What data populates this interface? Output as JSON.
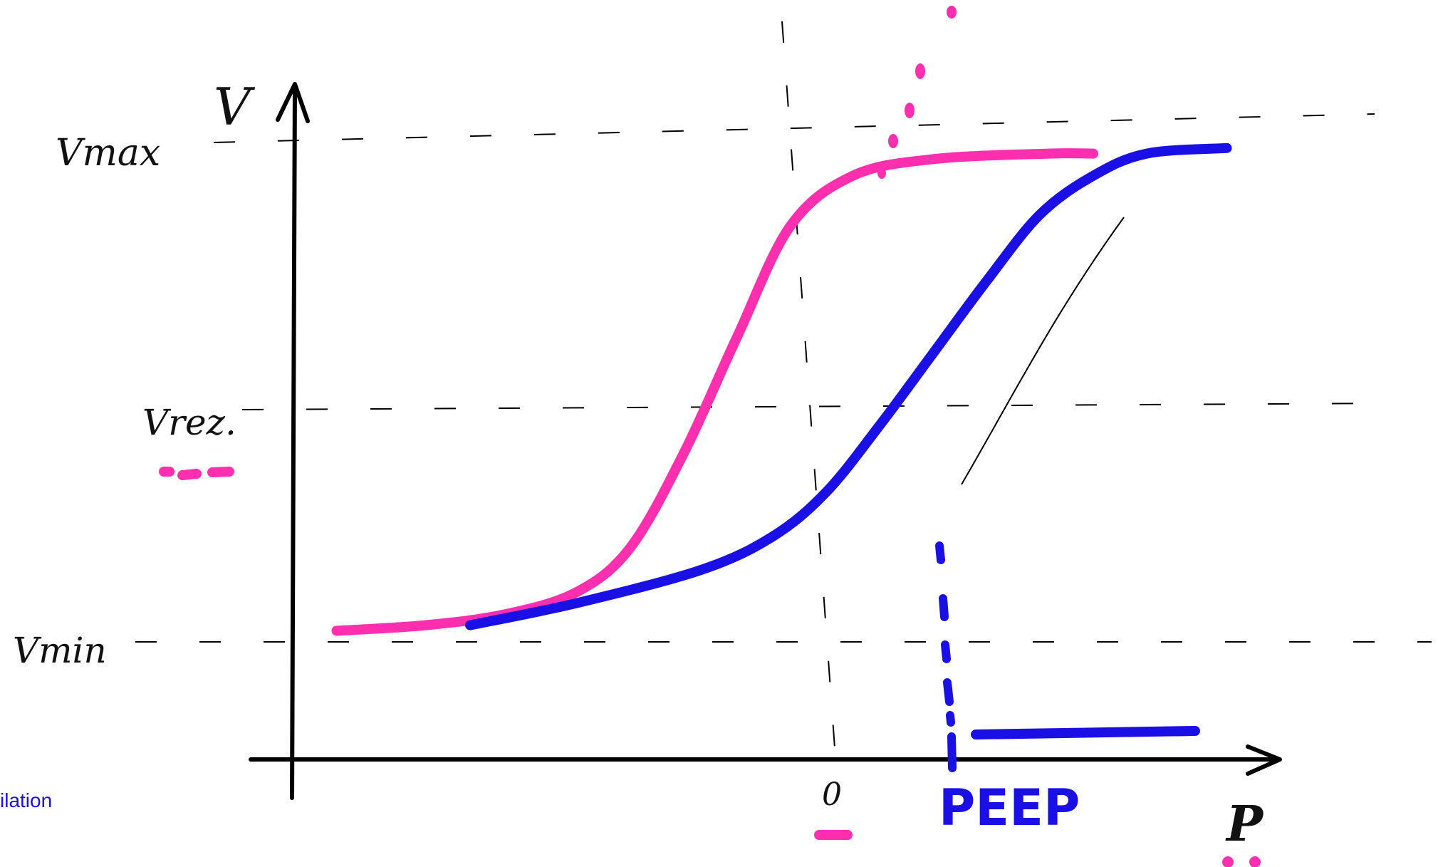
{
  "labels": {
    "y_axis": "V",
    "x_axis": "P",
    "v_max": "Vmax",
    "v_mid": "Vrez.",
    "v_min": "Vmin",
    "zero_mark": "0",
    "peep": "PEEP",
    "edge_text": "ilation"
  },
  "colors": {
    "pink": "#ff2fb0",
    "blue": "#1a10e6",
    "ink": "#000000"
  },
  "chart_data": {
    "type": "line",
    "title": "",
    "xlabel": "P",
    "ylabel": "V",
    "xlim": [
      -1,
      11
    ],
    "ylim": [
      0,
      10
    ],
    "reference_lines": [
      {
        "label": "Vmax",
        "y": 10,
        "style": "dashed"
      },
      {
        "label": "Vrez.",
        "y": 5,
        "style": "dashed"
      },
      {
        "label": "Vmin",
        "y": 1,
        "style": "dashed"
      }
    ],
    "series": [
      {
        "color": "#ff2fb0",
        "x": [
          -0.5,
          0.5,
          1.4,
          2.2,
          2.8,
          3.4,
          4.0,
          4.6,
          5.3,
          6.2,
          7.5,
          8.0
        ],
        "y": [
          1.2,
          1.3,
          1.5,
          1.9,
          2.7,
          4.4,
          6.5,
          8.5,
          9.4,
          9.7,
          9.8,
          9.8
        ]
      },
      {
        "color": "#1a10e6",
        "x": [
          1.0,
          2.2,
          3.6,
          4.4,
          5.0,
          5.6,
          6.2,
          6.8,
          7.4,
          8.0,
          8.6,
          9.5
        ],
        "y": [
          1.3,
          1.7,
          2.3,
          2.9,
          3.7,
          4.9,
          6.2,
          7.5,
          8.7,
          9.4,
          9.8,
          9.9
        ]
      }
    ],
    "x_markers": [
      {
        "label": "0",
        "x": 3.2,
        "style": "dashed",
        "color": "#000000"
      },
      {
        "label": "PEEP",
        "x": 4.8,
        "style": "dotted",
        "color": "#1a10e6"
      }
    ]
  }
}
